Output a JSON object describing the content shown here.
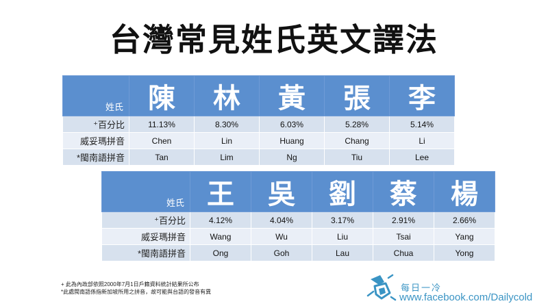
{
  "title": "台灣常見姓氏英文譯法",
  "label_surname": "姓氏",
  "row_labels": {
    "percent": "⁺百分比",
    "wade_giles": "威妥瑪拼音",
    "hokkien": "*閩南語拼音"
  },
  "table1": [
    {
      "char": "陳",
      "percent": "11.13%",
      "wade_giles": "Chen",
      "hokkien": "Tan"
    },
    {
      "char": "林",
      "percent": "8.30%",
      "wade_giles": "Lin",
      "hokkien": "Lim"
    },
    {
      "char": "黃",
      "percent": "6.03%",
      "wade_giles": "Huang",
      "hokkien": "Ng"
    },
    {
      "char": "張",
      "percent": "5.28%",
      "wade_giles": "Chang",
      "hokkien": "Tiu"
    },
    {
      "char": "李",
      "percent": "5.14%",
      "wade_giles": "Li",
      "hokkien": "Lee"
    }
  ],
  "table2": [
    {
      "char": "王",
      "percent": "4.12%",
      "wade_giles": "Wang",
      "hokkien": "Ong"
    },
    {
      "char": "吳",
      "percent": "4.04%",
      "wade_giles": "Wu",
      "hokkien": "Goh"
    },
    {
      "char": "劉",
      "percent": "3.17%",
      "wade_giles": "Liu",
      "hokkien": "Lau"
    },
    {
      "char": "蔡",
      "percent": "2.91%",
      "wade_giles": "Tsai",
      "hokkien": "Chua"
    },
    {
      "char": "楊",
      "percent": "2.66%",
      "wade_giles": "Yang",
      "hokkien": "Yong"
    }
  ],
  "footnotes": [
    "+ 此為內政部依照2000年7月1日戶籍資料統計結果所公布",
    "*此處閩南語係指新加坡所用之拼音，故可能與台語的發音有異"
  ],
  "brand": {
    "name": "每日一冷",
    "url": "www.facebook.com/Dailycold",
    "logo_icon": "dailycold-logo-icon",
    "color": "#3a94c4"
  },
  "colors": {
    "header": "#5b8fcf",
    "row_dark": "#d7e1ee",
    "row_light": "#eaeff7"
  }
}
